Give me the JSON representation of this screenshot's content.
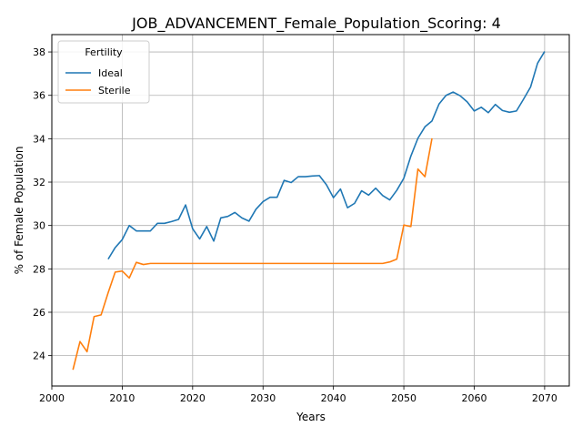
{
  "chart_data": {
    "type": "line",
    "title": "JOB_ADVANCEMENT_Female_Population_Scoring: 4",
    "xlabel": "Years",
    "ylabel": "% of Female Population",
    "xlim": [
      2000,
      2073.5
    ],
    "ylim": [
      22.6,
      38.8
    ],
    "xticks": [
      2000,
      2010,
      2020,
      2030,
      2040,
      2050,
      2060,
      2070
    ],
    "yticks": [
      24,
      26,
      28,
      30,
      32,
      34,
      36,
      38
    ],
    "grid": true,
    "legend": {
      "title": "Fertility",
      "placement": "top-left"
    },
    "series": [
      {
        "name": "Ideal",
        "color": "#1f77b4",
        "x": [
          2008,
          2009,
          2010,
          2011,
          2012,
          2013,
          2014,
          2015,
          2016,
          2017,
          2018,
          2019,
          2020,
          2021,
          2022,
          2023,
          2024,
          2025,
          2026,
          2027,
          2028,
          2029,
          2030,
          2031,
          2032,
          2033,
          2034,
          2035,
          2036,
          2037,
          2038,
          2039,
          2040,
          2041,
          2042,
          2043,
          2044,
          2045,
          2046,
          2047,
          2048,
          2049,
          2050,
          2051,
          2052,
          2053,
          2054,
          2055,
          2056,
          2057,
          2058,
          2059,
          2060,
          2061,
          2062,
          2063,
          2064,
          2065,
          2066,
          2067,
          2068,
          2069,
          2070
        ],
        "y": [
          28.45,
          28.98,
          29.35,
          30.0,
          29.75,
          29.75,
          29.75,
          30.1,
          30.1,
          30.18,
          30.28,
          30.95,
          29.85,
          29.38,
          29.95,
          29.28,
          30.35,
          30.42,
          30.6,
          30.35,
          30.2,
          30.75,
          31.1,
          31.3,
          31.3,
          32.08,
          31.98,
          32.25,
          32.25,
          32.28,
          32.3,
          31.88,
          31.28,
          31.68,
          30.82,
          31.02,
          31.6,
          31.4,
          31.72,
          31.38,
          31.18,
          31.62,
          32.18,
          33.2,
          34.02,
          34.55,
          34.82,
          35.6,
          36.0,
          36.15,
          35.98,
          35.7,
          35.28,
          35.45,
          35.2,
          35.58,
          35.3,
          35.22,
          35.28,
          35.82,
          36.38,
          37.48,
          38.02
        ]
      },
      {
        "name": "Sterile",
        "color": "#ff7f0e",
        "x": [
          2003,
          2004,
          2005,
          2006,
          2007,
          2008,
          2009,
          2010,
          2011,
          2012,
          2013,
          2014,
          2015,
          2016,
          2017,
          2018,
          2019,
          2020,
          2021,
          2022,
          2023,
          2024,
          2025,
          2026,
          2027,
          2028,
          2029,
          2030,
          2031,
          2032,
          2033,
          2034,
          2035,
          2036,
          2037,
          2038,
          2039,
          2040,
          2041,
          2042,
          2043,
          2044,
          2045,
          2046,
          2047,
          2048,
          2049,
          2050,
          2051,
          2052,
          2053,
          2054
        ],
        "y": [
          23.35,
          24.65,
          24.18,
          25.8,
          25.88,
          26.9,
          27.85,
          27.9,
          27.58,
          28.3,
          28.2,
          28.25,
          28.25,
          28.25,
          28.25,
          28.25,
          28.25,
          28.25,
          28.25,
          28.25,
          28.25,
          28.25,
          28.25,
          28.25,
          28.25,
          28.25,
          28.25,
          28.25,
          28.25,
          28.25,
          28.25,
          28.25,
          28.25,
          28.25,
          28.25,
          28.25,
          28.25,
          28.25,
          28.25,
          28.25,
          28.25,
          28.25,
          28.25,
          28.25,
          28.25,
          28.32,
          28.45,
          30.02,
          29.95,
          32.6,
          32.25,
          34.02
        ]
      }
    ]
  }
}
